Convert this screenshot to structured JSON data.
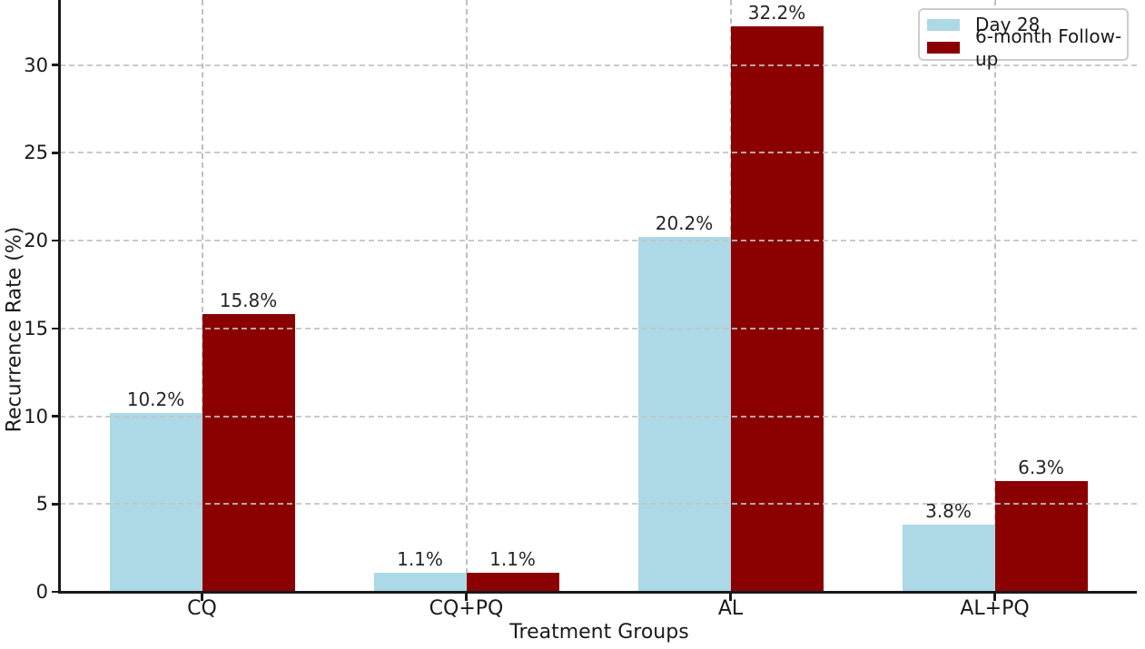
{
  "chart_data": {
    "type": "bar",
    "xlabel": "Treatment Groups",
    "ylabel": "Recurrence Rate (%)",
    "categories": [
      "CQ",
      "CQ+PQ",
      "AL",
      "AL+PQ"
    ],
    "series": [
      {
        "name": "Day 28",
        "color": "#ADD8E6",
        "values": [
          10.2,
          1.1,
          20.2,
          3.8
        ],
        "value_labels": [
          "10.2%",
          "1.1%",
          "20.2%",
          "3.8%"
        ]
      },
      {
        "name": "6-month Follow-up",
        "color": "#8B0000",
        "values": [
          15.8,
          1.1,
          32.2,
          6.3
        ],
        "value_labels": [
          "15.8%",
          "1.1%",
          "32.2%",
          "6.3%"
        ]
      }
    ],
    "yticks": [
      0,
      5,
      10,
      15,
      20,
      25,
      30
    ],
    "ylim": [
      0,
      33.7
    ],
    "grid": "dashed gray, horizontal and vertical",
    "legend_position": "upper right",
    "colors": {
      "axis": "#1a1a1a",
      "gridline": "#c3c3c3",
      "legend_border": "#cccccc",
      "background": "#ffffff"
    }
  }
}
